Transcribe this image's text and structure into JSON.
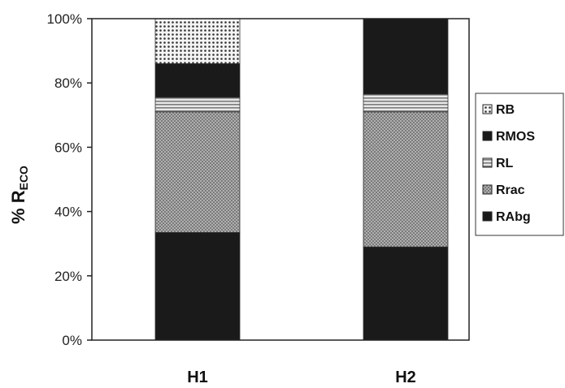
{
  "chart_data": {
    "type": "bar",
    "stacked": true,
    "categories": [
      "H1",
      "H2"
    ],
    "ylabel": "% R",
    "ylabel_subscript": "ECO",
    "ylim": [
      0,
      100
    ],
    "yticks": [
      "0%",
      "20%",
      "40%",
      "60%",
      "80%",
      "100%"
    ],
    "grid": false,
    "legend_position": "right",
    "series": [
      {
        "name": "RAbg",
        "values": [
          33.5,
          29
        ],
        "color": "#1a1a1a",
        "pattern": "solid"
      },
      {
        "name": "Rrac",
        "values": [
          37.5,
          42
        ],
        "color": "#8a8a8a",
        "pattern": "fine-dots"
      },
      {
        "name": "RL",
        "values": [
          4.5,
          5.5
        ],
        "color": "#bdbdbd",
        "pattern": "horizontal-lines"
      },
      {
        "name": "RMOS",
        "values": [
          10.5,
          23.5
        ],
        "color": "#1a1a1a",
        "pattern": "solid"
      },
      {
        "name": "RB",
        "values": [
          14,
          0
        ],
        "color": "#ffffff",
        "pattern": "dots"
      }
    ],
    "legend_order": [
      "RB",
      "RMOS",
      "RL",
      "Rrac",
      "RAbg"
    ]
  }
}
